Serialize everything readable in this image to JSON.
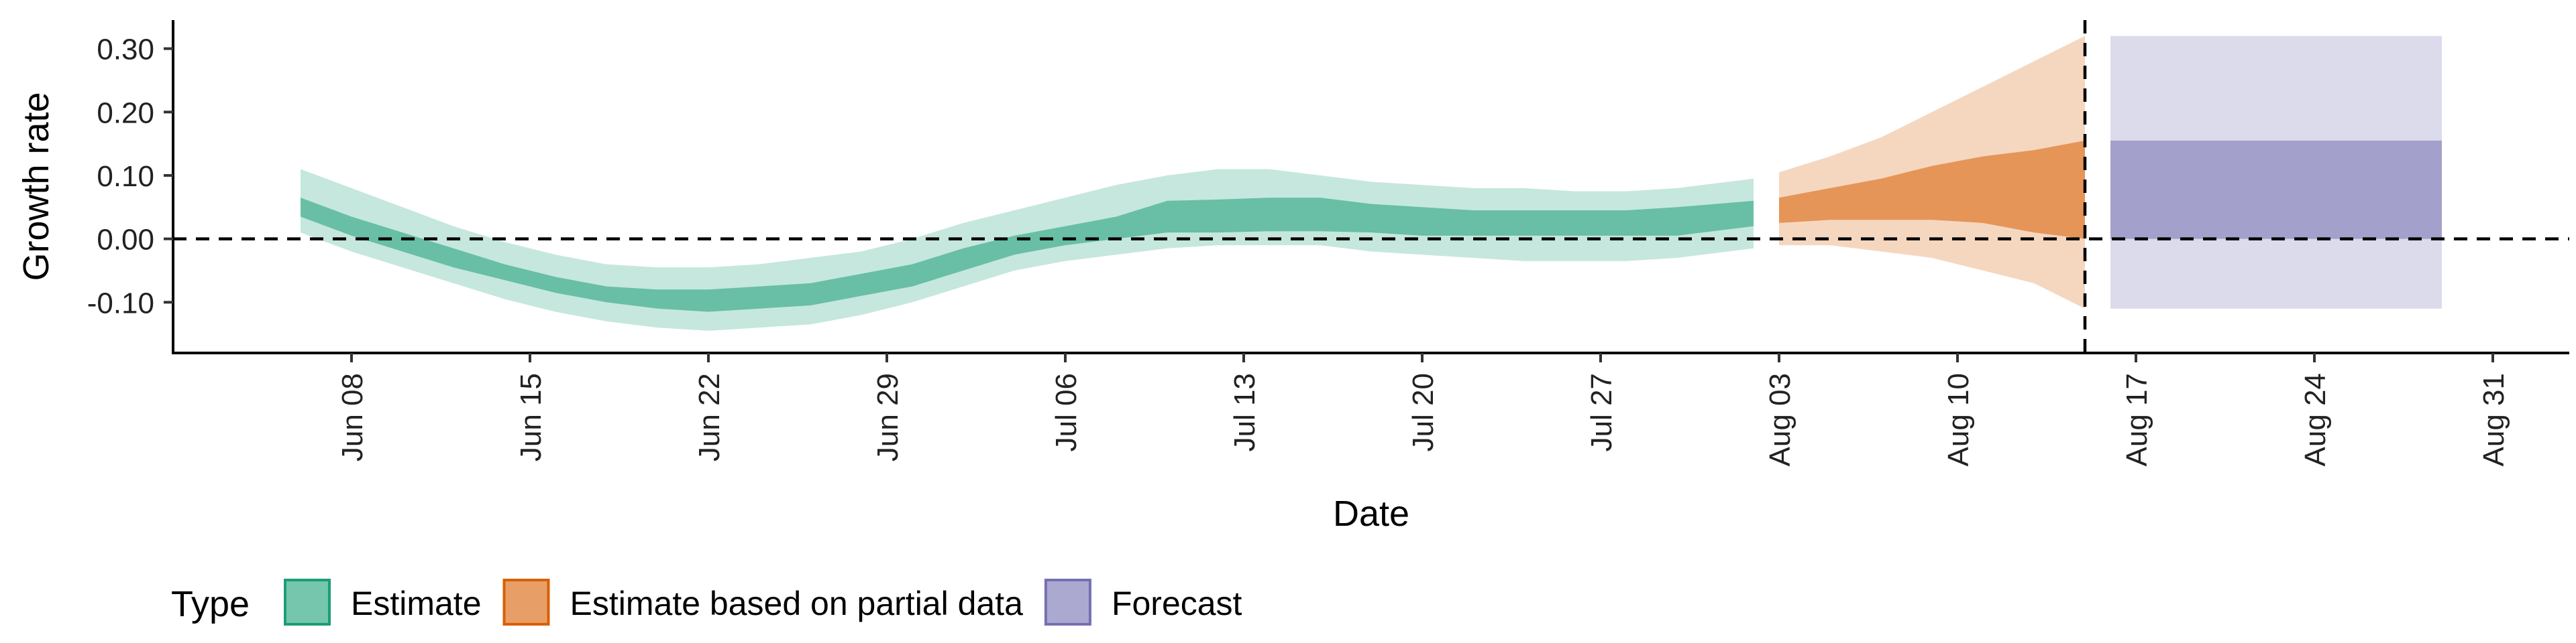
{
  "chart_data": {
    "type": "area",
    "xlabel": "Date",
    "ylabel": "Growth rate",
    "ylim": [
      -0.18,
      0.345
    ],
    "y_ticks": [
      {
        "value": 0.3,
        "label": "0.30"
      },
      {
        "value": 0.2,
        "label": "0.20"
      },
      {
        "value": 0.1,
        "label": "0.10"
      },
      {
        "value": 0.0,
        "label": "0.00"
      },
      {
        "value": -0.1,
        "label": "-0.10"
      }
    ],
    "xlim": [
      "2020-06-01",
      "2020-09-03"
    ],
    "x_ticks": [
      {
        "date": "2020-06-08",
        "label": "Jun 08"
      },
      {
        "date": "2020-06-15",
        "label": "Jun 15"
      },
      {
        "date": "2020-06-22",
        "label": "Jun 22"
      },
      {
        "date": "2020-06-29",
        "label": "Jun 29"
      },
      {
        "date": "2020-07-06",
        "label": "Jul 06"
      },
      {
        "date": "2020-07-13",
        "label": "Jul 13"
      },
      {
        "date": "2020-07-20",
        "label": "Jul 20"
      },
      {
        "date": "2020-07-27",
        "label": "Jul 27"
      },
      {
        "date": "2020-08-03",
        "label": "Aug 03"
      },
      {
        "date": "2020-08-10",
        "label": "Aug 10"
      },
      {
        "date": "2020-08-17",
        "label": "Aug 17"
      },
      {
        "date": "2020-08-24",
        "label": "Aug 24"
      },
      {
        "date": "2020-08-31",
        "label": "Aug 31"
      }
    ],
    "reference_lines": {
      "horizontal_y": 0.0,
      "vertical_date": "2020-08-15"
    },
    "grid": false,
    "legend": {
      "position": "bottom-left",
      "title": "Type"
    },
    "series": [
      {
        "name": "Estimate",
        "color": "#1B9E77",
        "points": [
          {
            "date": "2020-06-06",
            "lo90": 0.01,
            "lo50": 0.035,
            "hi50": 0.065,
            "hi90": 0.11
          },
          {
            "date": "2020-06-08",
            "lo90": -0.02,
            "lo50": 0.005,
            "hi50": 0.035,
            "hi90": 0.08
          },
          {
            "date": "2020-06-10",
            "lo90": -0.045,
            "lo50": -0.02,
            "hi50": 0.01,
            "hi90": 0.05
          },
          {
            "date": "2020-06-12",
            "lo90": -0.07,
            "lo50": -0.045,
            "hi50": -0.015,
            "hi90": 0.02
          },
          {
            "date": "2020-06-14",
            "lo90": -0.095,
            "lo50": -0.065,
            "hi50": -0.04,
            "hi90": -0.005
          },
          {
            "date": "2020-06-16",
            "lo90": -0.115,
            "lo50": -0.085,
            "hi50": -0.06,
            "hi90": -0.025
          },
          {
            "date": "2020-06-18",
            "lo90": -0.13,
            "lo50": -0.1,
            "hi50": -0.075,
            "hi90": -0.04
          },
          {
            "date": "2020-06-20",
            "lo90": -0.14,
            "lo50": -0.11,
            "hi50": -0.08,
            "hi90": -0.045
          },
          {
            "date": "2020-06-22",
            "lo90": -0.145,
            "lo50": -0.115,
            "hi50": -0.08,
            "hi90": -0.045
          },
          {
            "date": "2020-06-24",
            "lo90": -0.14,
            "lo50": -0.11,
            "hi50": -0.075,
            "hi90": -0.04
          },
          {
            "date": "2020-06-26",
            "lo90": -0.135,
            "lo50": -0.105,
            "hi50": -0.07,
            "hi90": -0.03
          },
          {
            "date": "2020-06-28",
            "lo90": -0.12,
            "lo50": -0.09,
            "hi50": -0.055,
            "hi90": -0.02
          },
          {
            "date": "2020-06-30",
            "lo90": -0.1,
            "lo50": -0.075,
            "hi50": -0.04,
            "hi90": 0.0
          },
          {
            "date": "2020-07-02",
            "lo90": -0.075,
            "lo50": -0.05,
            "hi50": -0.015,
            "hi90": 0.025
          },
          {
            "date": "2020-07-04",
            "lo90": -0.05,
            "lo50": -0.025,
            "hi50": 0.005,
            "hi90": 0.045
          },
          {
            "date": "2020-07-06",
            "lo90": -0.035,
            "lo50": -0.01,
            "hi50": 0.02,
            "hi90": 0.065
          },
          {
            "date": "2020-07-08",
            "lo90": -0.025,
            "lo50": 0.0,
            "hi50": 0.035,
            "hi90": 0.085
          },
          {
            "date": "2020-07-10",
            "lo90": -0.015,
            "lo50": 0.01,
            "hi50": 0.06,
            "hi90": 0.1
          },
          {
            "date": "2020-07-12",
            "lo90": -0.01,
            "lo50": 0.01,
            "hi50": 0.062,
            "hi90": 0.11
          },
          {
            "date": "2020-07-14",
            "lo90": -0.01,
            "lo50": 0.012,
            "hi50": 0.065,
            "hi90": 0.11
          },
          {
            "date": "2020-07-16",
            "lo90": -0.01,
            "lo50": 0.012,
            "hi50": 0.065,
            "hi90": 0.1
          },
          {
            "date": "2020-07-18",
            "lo90": -0.02,
            "lo50": 0.01,
            "hi50": 0.055,
            "hi90": 0.09
          },
          {
            "date": "2020-07-20",
            "lo90": -0.025,
            "lo50": 0.005,
            "hi50": 0.05,
            "hi90": 0.085
          },
          {
            "date": "2020-07-22",
            "lo90": -0.03,
            "lo50": 0.005,
            "hi50": 0.045,
            "hi90": 0.08
          },
          {
            "date": "2020-07-24",
            "lo90": -0.035,
            "lo50": 0.005,
            "hi50": 0.045,
            "hi90": 0.08
          },
          {
            "date": "2020-07-26",
            "lo90": -0.035,
            "lo50": 0.005,
            "hi50": 0.045,
            "hi90": 0.075
          },
          {
            "date": "2020-07-28",
            "lo90": -0.035,
            "lo50": 0.005,
            "hi50": 0.045,
            "hi90": 0.075
          },
          {
            "date": "2020-07-30",
            "lo90": -0.03,
            "lo50": 0.005,
            "hi50": 0.05,
            "hi90": 0.08
          },
          {
            "date": "2020-08-02",
            "lo90": -0.015,
            "lo50": 0.02,
            "hi50": 0.06,
            "hi90": 0.095
          }
        ]
      },
      {
        "name": "Estimate based on partial data",
        "color": "#D95F02",
        "points": [
          {
            "date": "2020-08-03",
            "lo90": -0.01,
            "lo50": 0.025,
            "hi50": 0.065,
            "hi90": 0.105
          },
          {
            "date": "2020-08-05",
            "lo90": -0.01,
            "lo50": 0.03,
            "hi50": 0.08,
            "hi90": 0.13
          },
          {
            "date": "2020-08-07",
            "lo90": -0.02,
            "lo50": 0.03,
            "hi50": 0.095,
            "hi90": 0.16
          },
          {
            "date": "2020-08-09",
            "lo90": -0.03,
            "lo50": 0.03,
            "hi50": 0.115,
            "hi90": 0.2
          },
          {
            "date": "2020-08-11",
            "lo90": -0.05,
            "lo50": 0.025,
            "hi50": 0.13,
            "hi90": 0.24
          },
          {
            "date": "2020-08-13",
            "lo90": -0.07,
            "lo50": 0.01,
            "hi50": 0.14,
            "hi90": 0.28
          },
          {
            "date": "2020-08-15",
            "lo90": -0.11,
            "lo50": 0.0,
            "hi50": 0.155,
            "hi90": 0.32
          }
        ]
      },
      {
        "name": "Forecast",
        "color": "#7570B3",
        "points": [
          {
            "date": "2020-08-16",
            "lo90": -0.11,
            "lo50": 0.0,
            "hi50": 0.155,
            "hi90": 0.32
          },
          {
            "date": "2020-08-29",
            "lo90": -0.11,
            "lo50": 0.0,
            "hi50": 0.155,
            "hi90": 0.32
          }
        ]
      }
    ]
  }
}
